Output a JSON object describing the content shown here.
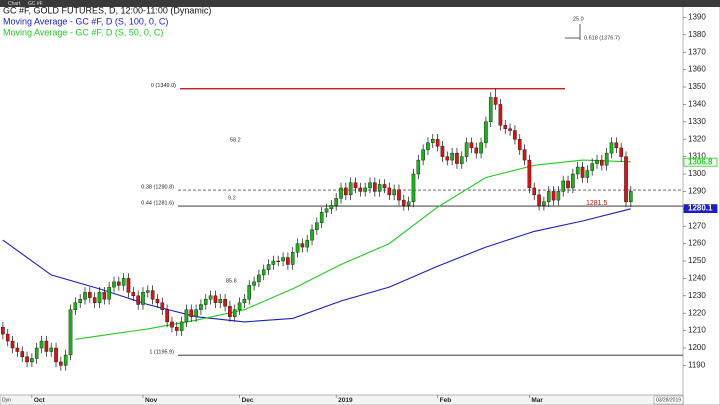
{
  "chart_data": {
    "type": "candlestick",
    "window": {
      "tab": "Chart",
      "symbol": "GC #F",
      "footer": "Dyn",
      "date_box": "03/28/2019"
    },
    "title": "GC #F, GOLD FUTURES, D, 12:00-11:00 (Dynamic)",
    "up_color": "#18b418",
    "down_color": "#e01010",
    "open": [
      1212,
      1208,
      1204,
      1200,
      1198,
      1195,
      1192,
      1194,
      1200,
      1204,
      1198,
      1200,
      1192,
      1190,
      1196,
      1222,
      1226,
      1228,
      1232,
      1229,
      1226,
      1232,
      1228,
      1235,
      1238,
      1236,
      1240,
      1232,
      1230,
      1225,
      1232,
      1233,
      1228,
      1226,
      1222,
      1215,
      1212,
      1210,
      1215,
      1222,
      1218,
      1222,
      1225,
      1228,
      1230,
      1226,
      1228,
      1224,
      1218,
      1222,
      1226,
      1228,
      1236,
      1238,
      1242,
      1245,
      1248,
      1250,
      1250,
      1252,
      1248,
      1255,
      1260,
      1258,
      1262,
      1268,
      1272,
      1278,
      1280,
      1282,
      1286,
      1292,
      1288,
      1295,
      1292,
      1290,
      1292,
      1295,
      1290,
      1294,
      1292,
      1288,
      1291,
      1285,
      1282,
      1284,
      1300,
      1308,
      1314,
      1318,
      1320,
      1316,
      1310,
      1308,
      1312,
      1306,
      1310,
      1318,
      1315,
      1312,
      1318,
      1330,
      1344,
      1340,
      1328,
      1326,
      1325,
      1320,
      1314,
      1308,
      1292,
      1288,
      1282,
      1284,
      1290,
      1285,
      1290,
      1296,
      1292,
      1300,
      1304,
      1298,
      1302,
      1306,
      1308,
      1305,
      1312,
      1318,
      1315,
      1310,
      1284
    ],
    "high": [
      1215,
      1211,
      1207,
      1203,
      1201,
      1198,
      1197,
      1203,
      1207,
      1207,
      1203,
      1203,
      1195,
      1199,
      1225,
      1229,
      1231,
      1235,
      1235,
      1232,
      1235,
      1235,
      1238,
      1241,
      1241,
      1243,
      1243,
      1235,
      1233,
      1235,
      1236,
      1236,
      1231,
      1229,
      1225,
      1218,
      1215,
      1218,
      1225,
      1225,
      1225,
      1228,
      1231,
      1233,
      1233,
      1231,
      1231,
      1227,
      1225,
      1229,
      1231,
      1239,
      1241,
      1245,
      1248,
      1251,
      1253,
      1253,
      1255,
      1255,
      1258,
      1263,
      1263,
      1265,
      1271,
      1275,
      1281,
      1283,
      1285,
      1289,
      1295,
      1295,
      1298,
      1298,
      1295,
      1295,
      1298,
      1298,
      1297,
      1297,
      1295,
      1294,
      1294,
      1288,
      1287,
      1303,
      1311,
      1317,
      1321,
      1323,
      1323,
      1319,
      1313,
      1315,
      1315,
      1313,
      1321,
      1321,
      1318,
      1321,
      1333,
      1347,
      1349,
      1343,
      1331,
      1329,
      1328,
      1323,
      1317,
      1311,
      1295,
      1291,
      1287,
      1293,
      1293,
      1293,
      1299,
      1299,
      1303,
      1307,
      1307,
      1305,
      1309,
      1311,
      1311,
      1315,
      1321,
      1321,
      1318,
      1313,
      1293
    ],
    "low": [
      1205,
      1201,
      1197,
      1195,
      1192,
      1189,
      1189,
      1191,
      1197,
      1195,
      1195,
      1189,
      1187,
      1187,
      1193,
      1219,
      1223,
      1225,
      1226,
      1223,
      1223,
      1225,
      1225,
      1232,
      1233,
      1233,
      1229,
      1227,
      1222,
      1222,
      1229,
      1225,
      1223,
      1219,
      1212,
      1209,
      1207,
      1207,
      1212,
      1215,
      1215,
      1219,
      1222,
      1225,
      1223,
      1223,
      1221,
      1215,
      1215,
      1219,
      1223,
      1225,
      1233,
      1235,
      1239,
      1242,
      1245,
      1247,
      1247,
      1245,
      1245,
      1252,
      1255,
      1255,
      1259,
      1265,
      1269,
      1275,
      1277,
      1279,
      1283,
      1285,
      1285,
      1289,
      1287,
      1287,
      1289,
      1287,
      1287,
      1289,
      1285,
      1285,
      1282,
      1279,
      1279,
      1281,
      1297,
      1305,
      1311,
      1315,
      1313,
      1307,
      1305,
      1305,
      1303,
      1303,
      1307,
      1312,
      1309,
      1309,
      1315,
      1327,
      1337,
      1325,
      1323,
      1322,
      1317,
      1311,
      1305,
      1289,
      1285,
      1279,
      1279,
      1281,
      1282,
      1282,
      1287,
      1289,
      1289,
      1297,
      1295,
      1295,
      1299,
      1303,
      1302,
      1302,
      1309,
      1312,
      1307,
      1281,
      1281
    ],
    "close": [
      1208,
      1204,
      1200,
      1198,
      1195,
      1192,
      1194,
      1200,
      1204,
      1198,
      1200,
      1192,
      1190,
      1196,
      1222,
      1226,
      1228,
      1232,
      1229,
      1226,
      1232,
      1228,
      1235,
      1238,
      1236,
      1240,
      1232,
      1230,
      1225,
      1232,
      1233,
      1228,
      1226,
      1222,
      1215,
      1212,
      1210,
      1215,
      1222,
      1218,
      1222,
      1225,
      1228,
      1230,
      1226,
      1228,
      1224,
      1218,
      1222,
      1226,
      1228,
      1236,
      1238,
      1242,
      1245,
      1248,
      1250,
      1250,
      1252,
      1248,
      1255,
      1260,
      1258,
      1262,
      1268,
      1272,
      1278,
      1280,
      1282,
      1286,
      1292,
      1288,
      1295,
      1292,
      1290,
      1292,
      1295,
      1290,
      1294,
      1292,
      1288,
      1291,
      1285,
      1282,
      1284,
      1300,
      1308,
      1314,
      1318,
      1320,
      1316,
      1310,
      1308,
      1312,
      1306,
      1310,
      1318,
      1315,
      1312,
      1318,
      1330,
      1344,
      1340,
      1328,
      1326,
      1325,
      1320,
      1314,
      1308,
      1292,
      1288,
      1282,
      1284,
      1290,
      1285,
      1290,
      1296,
      1292,
      1300,
      1304,
      1298,
      1302,
      1306,
      1308,
      1305,
      1312,
      1318,
      1315,
      1310,
      1284,
      1290
    ],
    "series": [
      {
        "name": "Moving Average - GC #F, D (S, 100, 0, C)",
        "color": "#1c1cc8",
        "x": [
          0,
          10,
          20,
          30,
          40,
          50,
          60,
          70,
          80,
          90,
          100,
          110,
          120,
          130
        ],
        "values": [
          1262,
          1242,
          1234,
          1225,
          1218,
          1215,
          1217,
          1227,
          1235,
          1247,
          1258,
          1267,
          1273,
          1280
        ]
      },
      {
        "name": "Moving Average - GC #F, D (S, 50, 0, C)",
        "color": "#22cc22",
        "x": [
          15,
          20,
          30,
          40,
          50,
          60,
          70,
          80,
          90,
          100,
          110,
          120,
          130
        ],
        "values": [
          1205,
          1207,
          1211,
          1216,
          1222,
          1234,
          1248,
          1260,
          1281,
          1298,
          1305,
          1308,
          1307
        ]
      }
    ],
    "levels": [
      {
        "label": "0 (1349.0)",
        "value": 1349.0,
        "color": "#c00000"
      },
      {
        "label": "0.38 (1290.8)",
        "value": 1290.8,
        "color": "#555555"
      },
      {
        "label": "0.44 (1281.6)",
        "value": 1281.6,
        "color": "#222222"
      },
      {
        "label": "1 (1195.9)",
        "value": 1195.9,
        "color": "#222222"
      }
    ],
    "annotations": [
      {
        "text": "58.2",
        "color": "#333333"
      },
      {
        "text": "9.2",
        "color": "#333333"
      },
      {
        "text": "85.8",
        "color": "#333333"
      },
      {
        "text": "1281.5",
        "color": "#d01010"
      },
      {
        "text": "25.0",
        "color": "#333333"
      },
      {
        "text": "0.618 (1376.7)",
        "color": "#333333"
      }
    ],
    "price_labels": [
      {
        "value": 1306.8,
        "color": "#22cc22"
      },
      {
        "value": 1280.1,
        "color": "#1c1cc8"
      }
    ],
    "xlim": [
      -0.6,
      140.8
    ],
    "xticks": [
      {
        "value": 6,
        "label": "Oct"
      },
      {
        "value": 29,
        "label": "Nov"
      },
      {
        "value": 49,
        "label": "Dec"
      },
      {
        "value": 69,
        "label": "2019"
      },
      {
        "value": 90,
        "label": "Feb"
      },
      {
        "value": 109,
        "label": "Mar"
      }
    ],
    "ylim": [
      1173,
      1400
    ],
    "yticks": [
      1190,
      1200,
      1210,
      1220,
      1230,
      1240,
      1250,
      1260,
      1270,
      1280,
      1290,
      1300,
      1310,
      1320,
      1330,
      1340,
      1350,
      1360,
      1370,
      1380,
      1390
    ]
  }
}
